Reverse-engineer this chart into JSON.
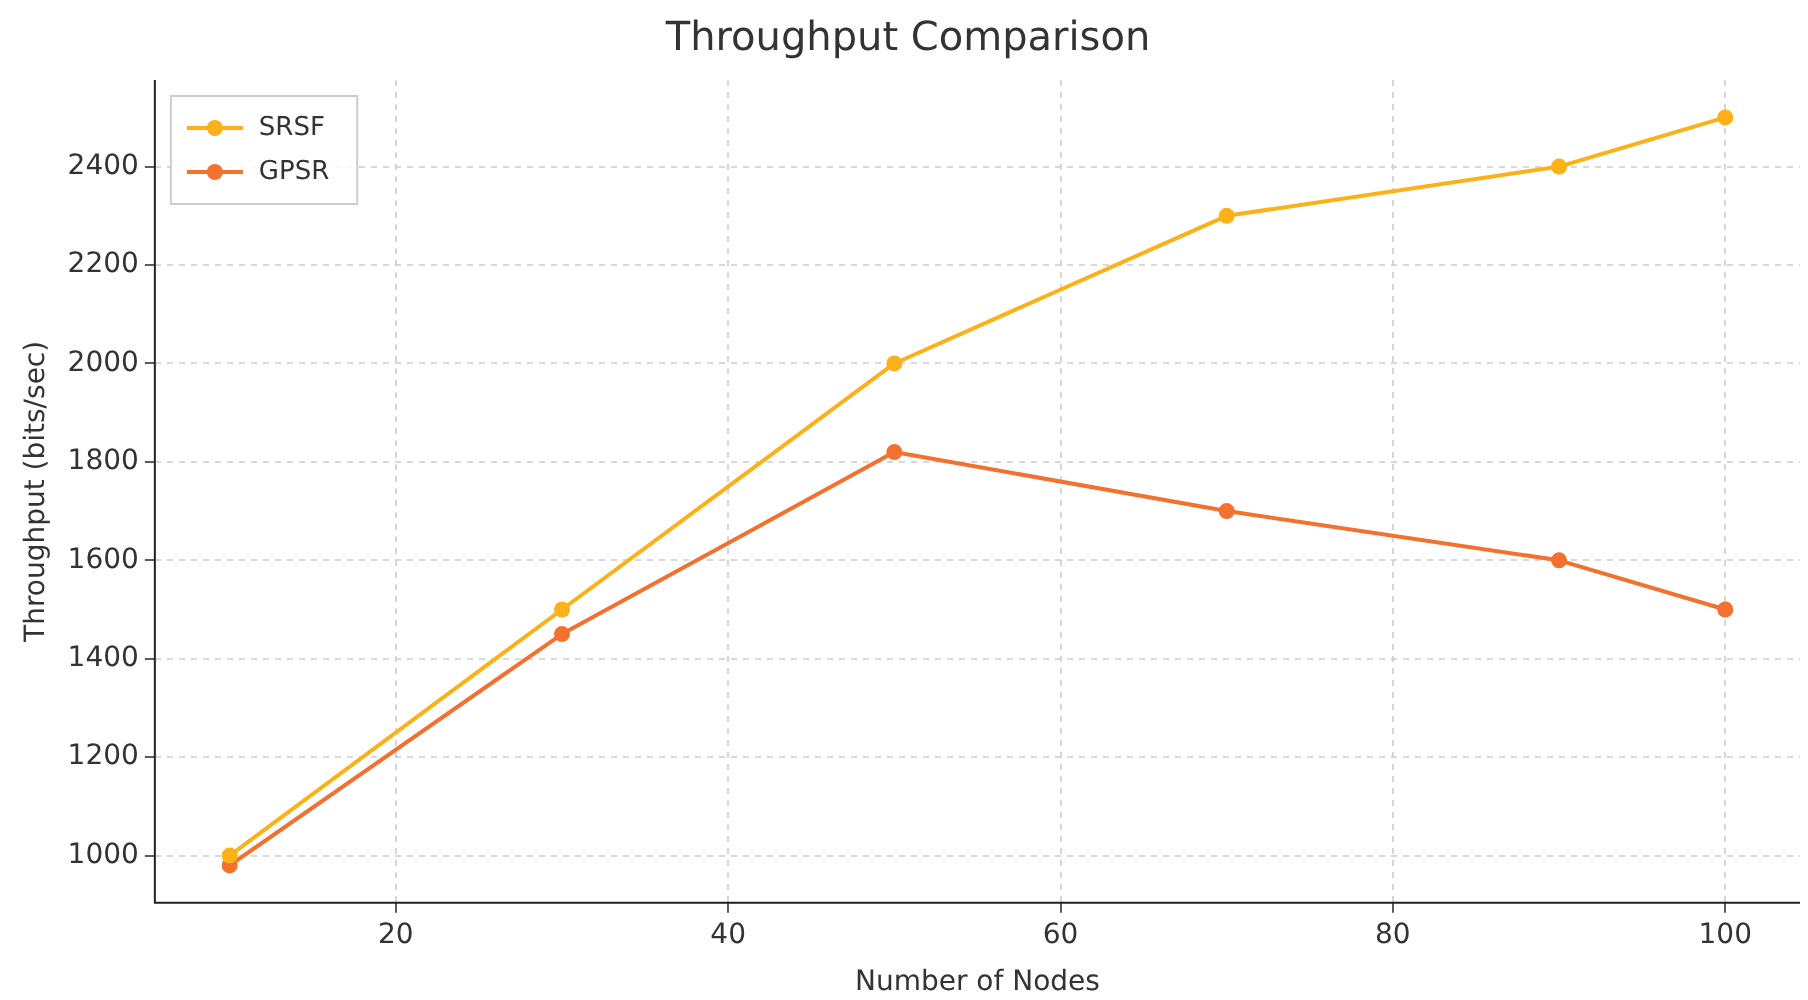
{
  "chart_data": {
    "type": "line",
    "title": "Throughput Comparison",
    "xlabel": "Number of Nodes",
    "ylabel": "Throughput (bits/sec)",
    "x": [
      10,
      30,
      50,
      70,
      90,
      100
    ],
    "series": [
      {
        "name": "SRSF",
        "color": "#fbb117",
        "values": [
          1000,
          1500,
          2000,
          2300,
          2400,
          2500
        ]
      },
      {
        "name": "GPSR",
        "color": "#f4702e",
        "values": [
          980,
          1450,
          1820,
          1700,
          1600,
          1500
        ]
      }
    ],
    "xlim": [
      5.5,
      104.5
    ],
    "xticks": [
      20,
      40,
      60,
      80,
      100
    ],
    "ylim": [
      904,
      2576
    ],
    "yticks": [
      1000,
      1200,
      1400,
      1600,
      1800,
      2000,
      2200,
      2400
    ],
    "grid": true,
    "legend": "top left",
    "marker": "circle",
    "line_style": "solid"
  }
}
